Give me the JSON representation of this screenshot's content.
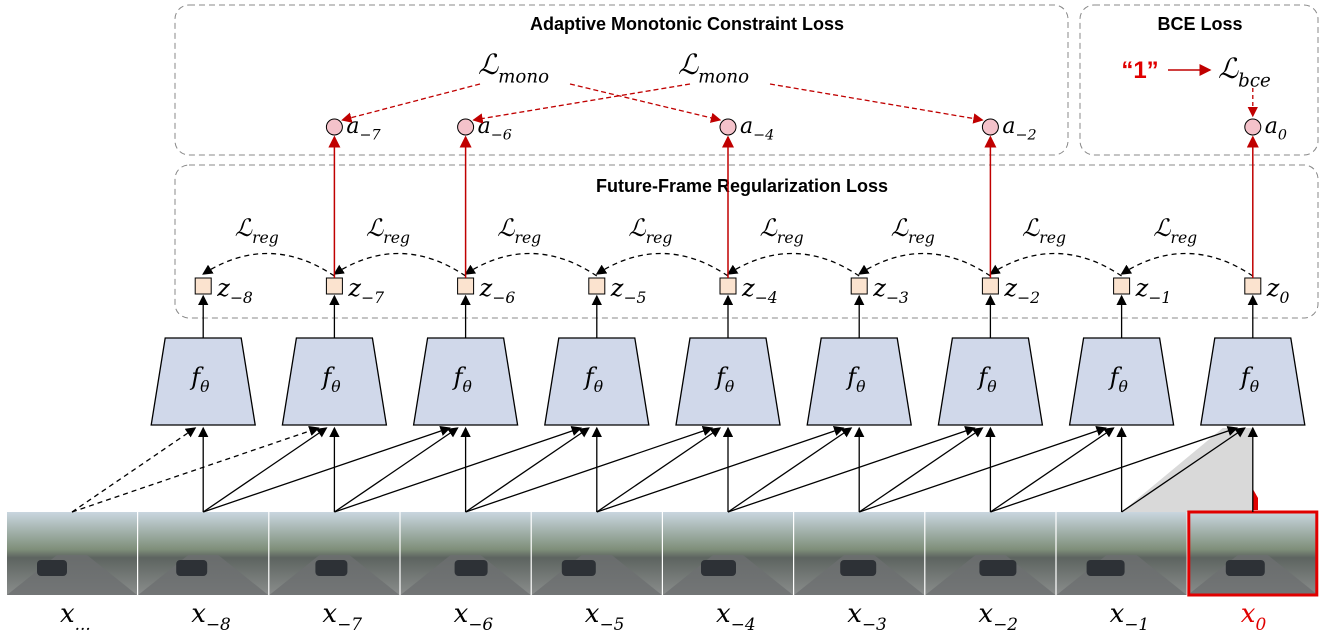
{
  "top_box": {
    "title": "Adaptive Monotonic Constraint Loss",
    "losses": [
      {
        "base": "ℒ",
        "sub": "mono"
      },
      {
        "base": "ℒ",
        "sub": "mono"
      }
    ]
  },
  "bce_box": {
    "title": "BCE Loss",
    "target": "“1”",
    "loss": {
      "base": "ℒ",
      "sub": "bce"
    }
  },
  "attention": [
    {
      "base": "a",
      "sub": "−7"
    },
    {
      "base": "a",
      "sub": "−6"
    },
    {
      "base": "a",
      "sub": "−4"
    },
    {
      "base": "a",
      "sub": "−2"
    },
    {
      "base": "a",
      "sub": "0"
    }
  ],
  "reg_box": {
    "title": "Future-Frame Regularization Loss",
    "loss_labels": [
      {
        "base": "ℒ",
        "sub": "reg"
      },
      {
        "base": "ℒ",
        "sub": "reg"
      },
      {
        "base": "ℒ",
        "sub": "reg"
      },
      {
        "base": "ℒ",
        "sub": "reg"
      },
      {
        "base": "ℒ",
        "sub": "reg"
      },
      {
        "base": "ℒ",
        "sub": "reg"
      },
      {
        "base": "ℒ",
        "sub": "reg"
      },
      {
        "base": "ℒ",
        "sub": "reg"
      }
    ]
  },
  "features": [
    {
      "base": "z",
      "sub": "−8"
    },
    {
      "base": "z",
      "sub": "−7"
    },
    {
      "base": "z",
      "sub": "−6"
    },
    {
      "base": "z",
      "sub": "−5"
    },
    {
      "base": "z",
      "sub": "−4"
    },
    {
      "base": "z",
      "sub": "−3"
    },
    {
      "base": "z",
      "sub": "−2"
    },
    {
      "base": "z",
      "sub": "−1"
    },
    {
      "base": "z",
      "sub": "0"
    }
  ],
  "encoders": [
    {
      "base": "f",
      "sub": "θ"
    },
    {
      "base": "f",
      "sub": "θ"
    },
    {
      "base": "f",
      "sub": "θ"
    },
    {
      "base": "f",
      "sub": "θ"
    },
    {
      "base": "f",
      "sub": "θ"
    },
    {
      "base": "f",
      "sub": "θ"
    },
    {
      "base": "f",
      "sub": "θ"
    },
    {
      "base": "f",
      "sub": "θ"
    },
    {
      "base": "f",
      "sub": "θ"
    }
  ],
  "frames": [
    {
      "base": "x",
      "sub": "..."
    },
    {
      "base": "x",
      "sub": "−8"
    },
    {
      "base": "x",
      "sub": "−7"
    },
    {
      "base": "x",
      "sub": "−6"
    },
    {
      "base": "x",
      "sub": "−5"
    },
    {
      "base": "x",
      "sub": "−4"
    },
    {
      "base": "x",
      "sub": "−3"
    },
    {
      "base": "x",
      "sub": "−2"
    },
    {
      "base": "x",
      "sub": "−1"
    },
    {
      "base": "x",
      "sub": "0"
    }
  ]
}
